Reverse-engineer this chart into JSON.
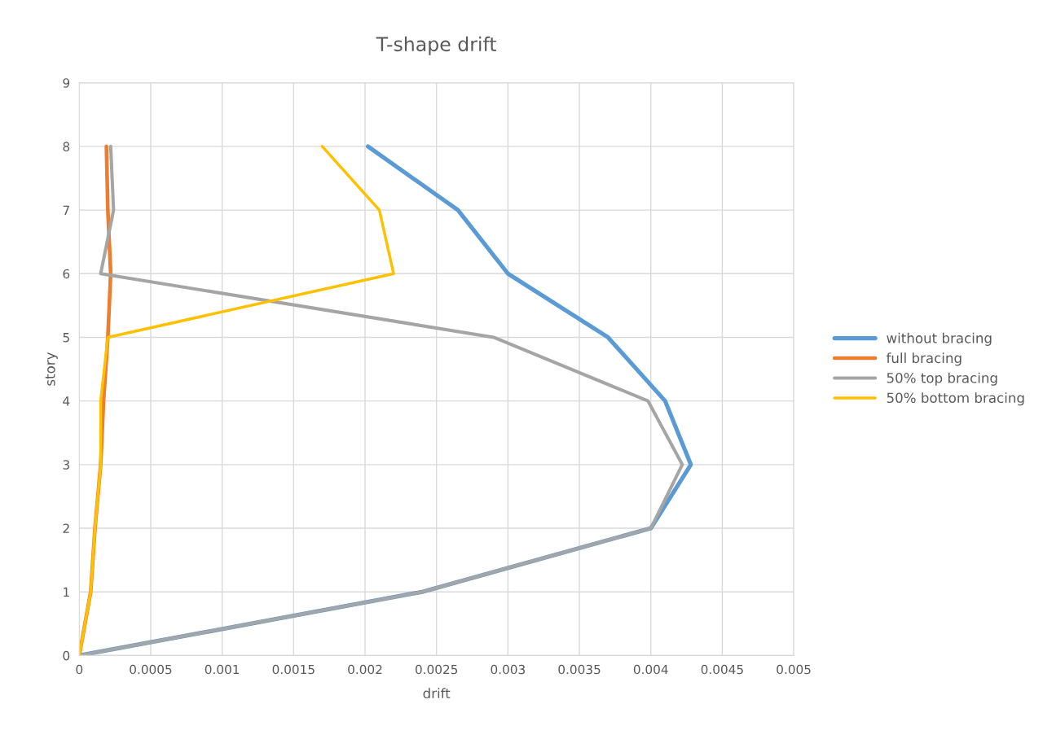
{
  "chart_data": {
    "type": "line",
    "title": "T-shape drift",
    "xlabel": "drift",
    "ylabel": "story",
    "series": [
      {
        "name": "without bracing",
        "color": "#5b9bd5",
        "x": [
          0,
          0.0024,
          0.004,
          0.00428,
          0.0041,
          0.0037,
          0.003,
          0.00265,
          0.00202
        ],
        "values": [
          0,
          1,
          2,
          3,
          4,
          5,
          6,
          7,
          8
        ]
      },
      {
        "name": "full bracing",
        "color": "#ed7d31",
        "x": [
          0,
          8e-05,
          0.00011,
          0.00015,
          0.00017,
          0.0002,
          0.00022,
          0.0002,
          0.00019
        ],
        "values": [
          0,
          1,
          2,
          3,
          4,
          5,
          6,
          7,
          8
        ]
      },
      {
        "name": "50% top bracing",
        "color": "#a5a5a5",
        "x": [
          0,
          0.0024,
          0.004,
          0.00422,
          0.00398,
          0.0029,
          0.00015,
          0.00024,
          0.00022
        ],
        "values": [
          0,
          1,
          2,
          3,
          4,
          5,
          6,
          7,
          8
        ]
      },
      {
        "name": "50% bottom bracing",
        "color": "#ffc000",
        "x": [
          0,
          8e-05,
          0.00011,
          0.00015,
          0.00015,
          0.0002,
          0.0022,
          0.0021,
          0.0017
        ],
        "values": [
          0,
          1,
          2,
          3,
          4,
          5,
          6,
          7,
          8
        ]
      }
    ],
    "xlim": [
      0,
      0.005
    ],
    "xticks": [
      0,
      0.0005,
      0.001,
      0.0015,
      0.002,
      0.0025,
      0.003,
      0.0035,
      0.004,
      0.0045,
      0.005
    ],
    "ylim": [
      0,
      9
    ],
    "yticks": [
      0,
      1,
      2,
      3,
      4,
      5,
      6,
      7,
      8,
      9
    ],
    "grid": true,
    "legend": "right",
    "marker": "none",
    "line_style": "solid"
  }
}
